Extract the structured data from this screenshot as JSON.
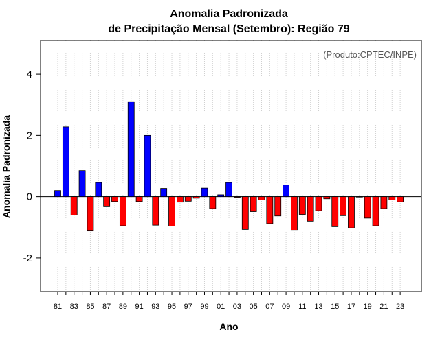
{
  "chart_data": {
    "type": "bar",
    "title_line1": "Anomalia Padronizada",
    "title_line2": "de Precipitação Mensal (Setembro): Região 79",
    "xlabel": "Ano",
    "ylabel": "Anomalia Padronizada",
    "annotation": "(Produto:CPTEC/INPE)",
    "ylim": [
      -3.1,
      5.1
    ],
    "yticks": [
      "4",
      "2",
      "0",
      "-2"
    ],
    "ytick_values": [
      4,
      2,
      0,
      -2
    ],
    "xtick_labels": [
      "81",
      "83",
      "85",
      "87",
      "89",
      "91",
      "93",
      "95",
      "97",
      "99",
      "01",
      "03",
      "05",
      "07",
      "09",
      "11",
      "13",
      "15",
      "17",
      "19",
      "21",
      "23"
    ],
    "categories": [
      "81",
      "82",
      "83",
      "84",
      "85",
      "86",
      "87",
      "88",
      "89",
      "90",
      "91",
      "92",
      "93",
      "94",
      "95",
      "96",
      "97",
      "98",
      "99",
      "00",
      "01",
      "02",
      "03",
      "04",
      "05",
      "06",
      "07",
      "08",
      "09",
      "10",
      "11",
      "12",
      "13",
      "14",
      "15",
      "16",
      "17",
      "18",
      "19",
      "20",
      "21",
      "22",
      "23"
    ],
    "values": [
      0.2,
      2.28,
      -0.6,
      0.85,
      -1.12,
      0.46,
      -0.33,
      -0.16,
      -0.95,
      3.1,
      -0.16,
      2.0,
      -0.93,
      0.27,
      -0.96,
      -0.18,
      -0.15,
      -0.05,
      0.28,
      -0.39,
      0.06,
      0.46,
      -0.02,
      -1.07,
      -0.49,
      -0.11,
      -0.88,
      -0.63,
      0.38,
      -1.1,
      -0.58,
      -0.8,
      -0.46,
      -0.07,
      -0.98,
      -0.62,
      -1.02,
      -0.01,
      -0.7,
      -0.95,
      -0.39,
      -0.11,
      -0.17
    ],
    "positive_color": "#0000ff",
    "negative_color": "#ff0000",
    "grid_color": "#d0d0d0"
  }
}
